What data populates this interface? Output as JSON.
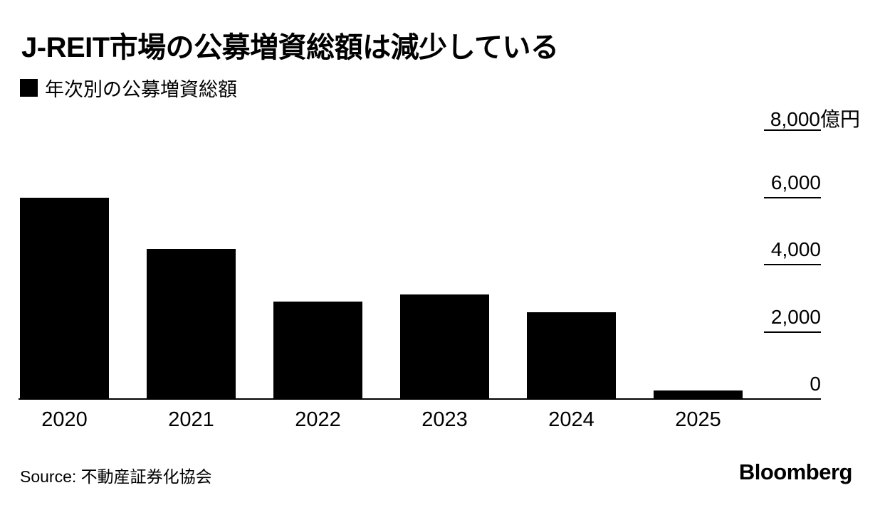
{
  "title": "J-REIT市場の公募増資総額は減少している",
  "legend": {
    "marker_icon": "black-square-icon",
    "label": "年次別の公募増資総額"
  },
  "source": "Source: 不動産証券化協会",
  "branding": "Bloomberg",
  "colors": {
    "bar": "#000000",
    "background": "#ffffff",
    "text": "#000000",
    "axis": "#000000"
  },
  "chart_data": {
    "type": "bar",
    "title": "J-REIT市場の公募増資総額は減少している",
    "series_label": "年次別の公募増資総額",
    "unit": "億円",
    "categories": [
      "2020",
      "2021",
      "2022",
      "2023",
      "2024",
      "2025"
    ],
    "values": [
      5990,
      4460,
      2900,
      3110,
      2580,
      250
    ],
    "ylim": [
      0,
      8000
    ],
    "yticks": [
      0,
      2000,
      4000,
      6000,
      8000
    ],
    "ytick_labels": [
      "0",
      "2,000",
      "4,000",
      "6,000",
      "8,000億円"
    ],
    "axis_side": "right",
    "legend_position": "top-left",
    "grid": false,
    "bar_color": "#000000"
  }
}
